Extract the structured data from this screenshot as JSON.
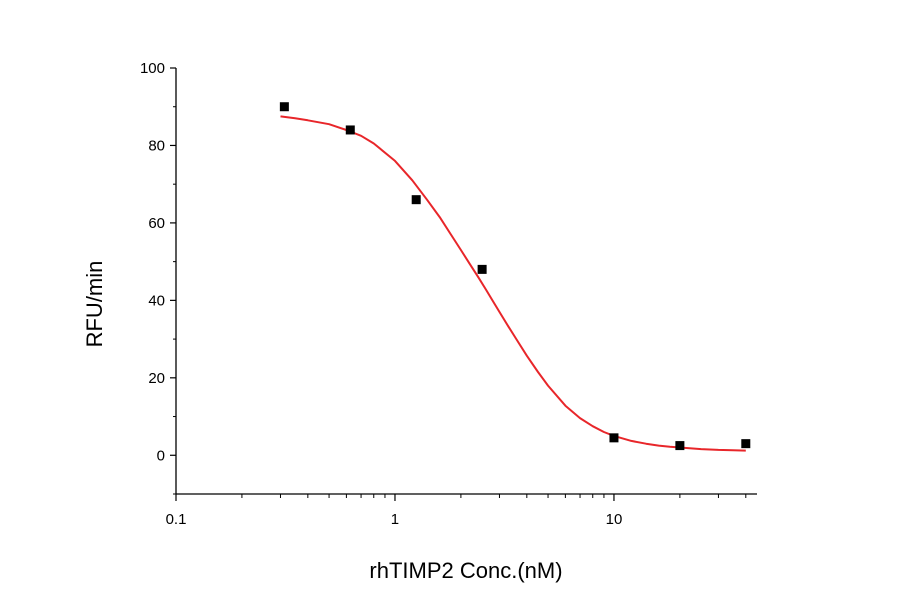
{
  "chart_data": {
    "type": "scatter",
    "xlabel": "rhTIMP2 Conc.(nM)",
    "ylabel": "RFU/min",
    "x_scale": "log",
    "xlim": [
      0.1,
      45
    ],
    "ylim": [
      -10,
      100
    ],
    "x_ticks": [
      {
        "value": 0.1,
        "label": "0.1"
      },
      {
        "value": 1,
        "label": "1"
      },
      {
        "value": 10,
        "label": "10"
      }
    ],
    "y_ticks": [
      {
        "value": 0,
        "label": "0"
      },
      {
        "value": 20,
        "label": "20"
      },
      {
        "value": 40,
        "label": "40"
      },
      {
        "value": 60,
        "label": "60"
      },
      {
        "value": 80,
        "label": "80"
      },
      {
        "value": 100,
        "label": "100"
      }
    ],
    "grid": false,
    "legend": "none",
    "series": [
      {
        "kind": "points",
        "marker": "square",
        "color": "#000000",
        "x": [
          0.3125,
          0.625,
          1.25,
          2.5,
          10,
          20,
          40
        ],
        "y": [
          90,
          84,
          66,
          48,
          4.5,
          2.5,
          3
        ]
      },
      {
        "kind": "fit-curve",
        "color": "#e8262a",
        "x": [
          0.3,
          0.35,
          0.4,
          0.5,
          0.6,
          0.7,
          0.8,
          1.0,
          1.2,
          1.4,
          1.6,
          1.8,
          2.0,
          2.2,
          2.4,
          2.6,
          2.8,
          3.0,
          3.3,
          3.6,
          4.0,
          4.5,
          5.0,
          6.0,
          7.0,
          8.0,
          9.0,
          10,
          12,
          14,
          16,
          18,
          20,
          25,
          30,
          35,
          40
        ],
        "y": [
          87.5,
          87.0,
          86.5,
          85.5,
          84.0,
          82.5,
          80.5,
          76.0,
          71.0,
          66.0,
          61.5,
          57.0,
          53.0,
          49.3,
          46.0,
          42.8,
          39.8,
          37.0,
          33.2,
          29.8,
          25.7,
          21.5,
          18.0,
          12.8,
          9.6,
          7.5,
          6.0,
          5.0,
          3.7,
          3.0,
          2.5,
          2.2,
          2.0,
          1.6,
          1.4,
          1.3,
          1.2
        ]
      }
    ]
  }
}
